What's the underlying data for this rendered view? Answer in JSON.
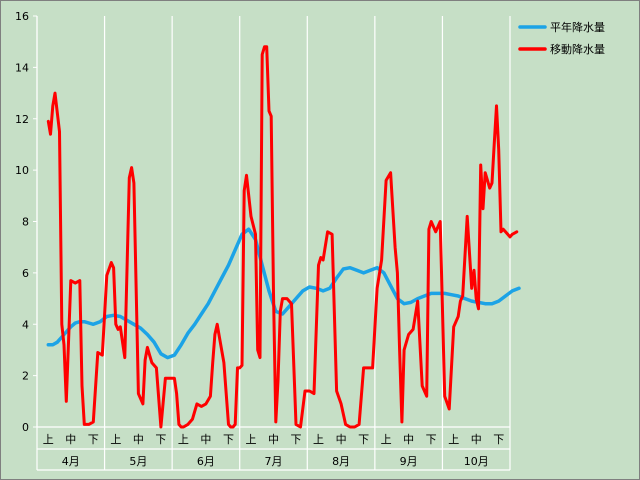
{
  "chart_data": {
    "type": "line",
    "ylim": [
      0,
      16
    ],
    "yticks": [
      0,
      2,
      4,
      6,
      8,
      10,
      12,
      14,
      16
    ],
    "months": [
      "4月",
      "5月",
      "6月",
      "7月",
      "8月",
      "9月",
      "10月"
    ],
    "periods": [
      "上",
      "中",
      "下"
    ],
    "grid": "vertical",
    "legend_position": "top-right",
    "series": [
      {
        "name": "平年降水量",
        "color": "#1ca3e6",
        "x": [
          0.0,
          0.1,
          0.2,
          0.3,
          0.4,
          0.5,
          0.6,
          0.7,
          0.8,
          0.9,
          1.0,
          1.2,
          1.4,
          1.6,
          1.8,
          2.0,
          2.3,
          2.6,
          2.9,
          3.2,
          3.5,
          3.8,
          4.1,
          4.4,
          4.7,
          5.0,
          5.3,
          5.6,
          5.9,
          6.2,
          6.5,
          6.8,
          7.1,
          7.4,
          7.7,
          8.0,
          8.3,
          8.6,
          8.9,
          9.2,
          9.5,
          9.8,
          10.1,
          10.4,
          10.7,
          11.0,
          11.3,
          11.6,
          11.9,
          12.2,
          12.5,
          12.8,
          13.1,
          13.4,
          13.7,
          14.0,
          14.3,
          14.6,
          14.9,
          15.2,
          15.5,
          15.8,
          16.1,
          16.4,
          16.7,
          17.0,
          17.3,
          17.6,
          17.9,
          18.2,
          18.5,
          18.8,
          19.1,
          19.4,
          19.7,
          20.0,
          20.3,
          20.6,
          20.9
        ],
        "values": [
          3.2,
          3.2,
          3.2,
          3.25,
          3.3,
          3.4,
          3.5,
          3.6,
          3.7,
          3.8,
          3.9,
          4.05,
          4.1,
          4.1,
          4.05,
          4.0,
          4.1,
          4.3,
          4.35,
          4.3,
          4.15,
          4.0,
          3.85,
          3.6,
          3.3,
          2.85,
          2.7,
          2.8,
          3.2,
          3.65,
          4.0,
          4.4,
          4.8,
          5.3,
          5.8,
          6.3,
          6.9,
          7.5,
          7.7,
          7.3,
          6.3,
          5.3,
          4.5,
          4.4,
          4.7,
          5.0,
          5.3,
          5.45,
          5.4,
          5.3,
          5.4,
          5.8,
          6.15,
          6.2,
          6.1,
          6.0,
          6.1,
          6.2,
          6.0,
          5.5,
          5.0,
          4.8,
          4.85,
          5.0,
          5.1,
          5.2,
          5.2,
          5.2,
          5.15,
          5.1,
          5.0,
          4.9,
          4.85,
          4.8,
          4.8,
          4.9,
          5.1,
          5.3,
          5.4
        ]
      },
      {
        "name": "移動降水量",
        "color": "#ff0000",
        "x": [
          0.0,
          0.1,
          0.2,
          0.3,
          0.5,
          0.6,
          0.7,
          0.8,
          1.0,
          1.2,
          1.4,
          1.5,
          1.6,
          1.8,
          2.0,
          2.2,
          2.4,
          2.6,
          2.8,
          2.9,
          3.0,
          3.1,
          3.2,
          3.4,
          3.6,
          3.7,
          3.8,
          4.0,
          4.2,
          4.3,
          4.4,
          4.5,
          4.6,
          4.8,
          5.0,
          5.2,
          5.4,
          5.5,
          5.6,
          5.7,
          5.8,
          5.9,
          6.0,
          6.2,
          6.4,
          6.6,
          6.8,
          7.0,
          7.2,
          7.3,
          7.4,
          7.5,
          7.6,
          7.8,
          8.0,
          8.1,
          8.2,
          8.3,
          8.4,
          8.5,
          8.6,
          8.7,
          8.8,
          9.0,
          9.2,
          9.3,
          9.4,
          9.5,
          9.6,
          9.7,
          9.8,
          9.9,
          10.0,
          10.1,
          10.2,
          10.3,
          10.4,
          10.6,
          10.8,
          11.0,
          11.2,
          11.4,
          11.6,
          11.8,
          12.0,
          12.1,
          12.2,
          12.4,
          12.6,
          12.8,
          13.0,
          13.2,
          13.4,
          13.6,
          13.8,
          14.0,
          14.2,
          14.4,
          14.6,
          14.8,
          15.0,
          15.2,
          15.4,
          15.5,
          15.6,
          15.7,
          15.8,
          16.0,
          16.2,
          16.4,
          16.6,
          16.8,
          16.9,
          17.0,
          17.2,
          17.4,
          17.6,
          17.8,
          18.0,
          18.2,
          18.3,
          18.4,
          18.6,
          18.8,
          18.9,
          19.0,
          19.1,
          19.2,
          19.3,
          19.4,
          19.5,
          19.6,
          19.7,
          19.8,
          19.9,
          20.0,
          20.1,
          20.2,
          20.3,
          20.4,
          20.5,
          20.6,
          20.8
        ],
        "values": [
          11.9,
          11.4,
          12.5,
          13.0,
          11.5,
          4.0,
          3.2,
          1.0,
          5.7,
          5.6,
          5.7,
          1.6,
          0.1,
          0.1,
          0.2,
          2.9,
          2.8,
          5.9,
          6.4,
          6.2,
          4.0,
          3.8,
          3.9,
          2.7,
          9.7,
          10.1,
          9.5,
          1.3,
          0.9,
          2.6,
          3.1,
          2.8,
          2.5,
          2.3,
          0.0,
          1.9,
          1.9,
          1.9,
          1.9,
          1.3,
          0.1,
          0.0,
          0.0,
          0.1,
          0.3,
          0.9,
          0.8,
          0.9,
          1.2,
          2.5,
          3.6,
          4.0,
          3.5,
          2.5,
          0.1,
          0.0,
          0.0,
          0.1,
          2.3,
          2.3,
          2.4,
          9.2,
          9.8,
          8.2,
          7.5,
          3.0,
          2.7,
          14.5,
          14.8,
          14.8,
          12.3,
          12.1,
          5.2,
          0.2,
          1.8,
          4.5,
          5.0,
          5.0,
          4.8,
          0.1,
          0.0,
          1.4,
          1.4,
          1.3,
          6.3,
          6.6,
          6.5,
          7.6,
          7.5,
          1.4,
          0.9,
          0.1,
          0.0,
          0.0,
          0.1,
          2.3,
          2.3,
          2.3,
          5.4,
          6.5,
          9.6,
          9.9,
          7.0,
          6.0,
          3.0,
          0.2,
          3.0,
          3.6,
          3.8,
          4.9,
          1.6,
          1.2,
          7.7,
          8.0,
          7.6,
          8.0,
          1.2,
          0.7,
          3.9,
          4.3,
          4.9,
          5.1,
          8.2,
          5.4,
          6.1,
          5.0,
          4.6,
          10.2,
          8.5,
          9.9,
          9.6,
          9.3,
          9.5,
          11.0,
          12.5,
          10.8,
          7.6,
          7.7,
          7.6,
          7.5,
          7.4,
          7.5,
          7.6
        ]
      }
    ]
  }
}
